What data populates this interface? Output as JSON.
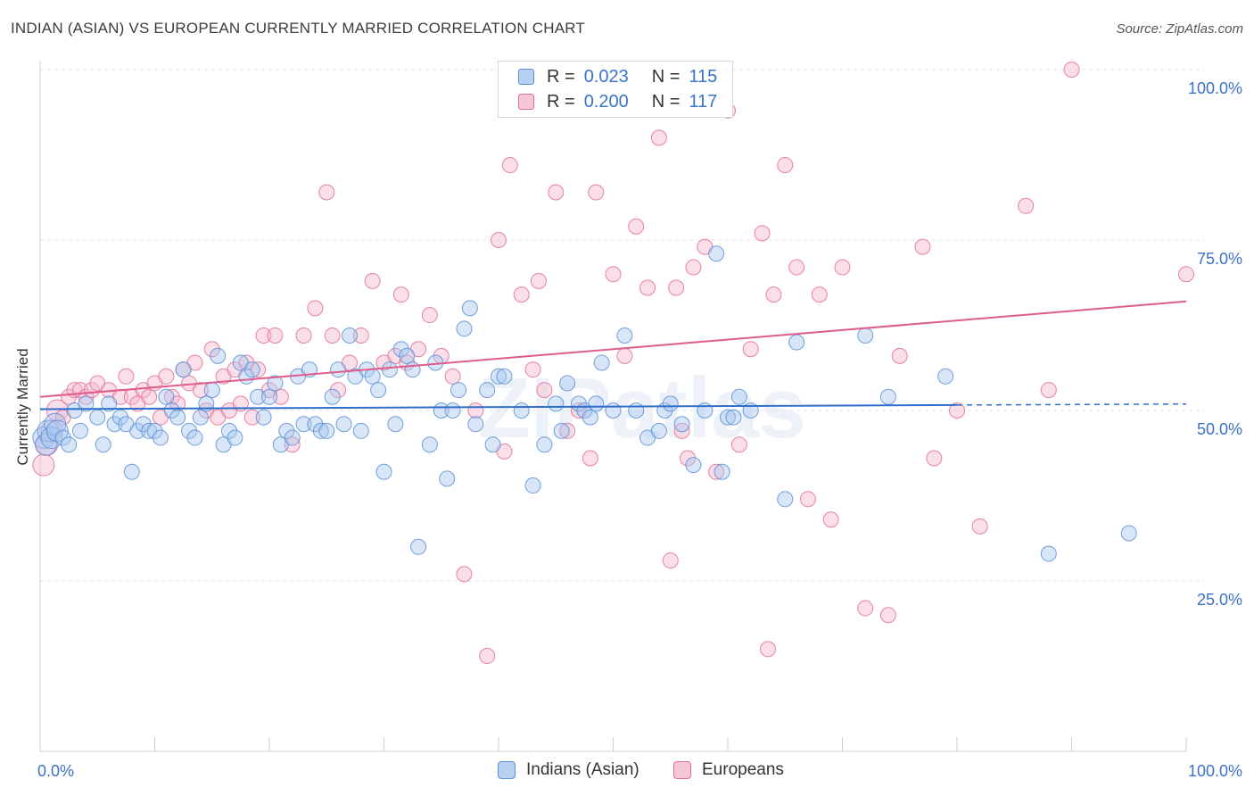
{
  "title": "INDIAN (ASIAN) VS EUROPEAN CURRENTLY MARRIED CORRELATION CHART",
  "source": "Source: ZipAtlas.com",
  "legend": {
    "r_label": "R =",
    "n_label": "N =",
    "blue": {
      "r": "0.023",
      "n": "115"
    },
    "pink": {
      "r": "0.200",
      "n": "117"
    }
  },
  "watermark": "ZIPatlas",
  "colors": {
    "blue": "#5b8fd6",
    "blue_fill": "#a9c8f0",
    "pink": "#e46d96",
    "pink_fill": "#f5b8cc",
    "axis_text": "#3b73c8"
  },
  "chart_data": {
    "type": "scatter",
    "xlabel": "",
    "ylabel": "Currently Married",
    "xlim": [
      0,
      100
    ],
    "ylim": [
      0,
      100
    ],
    "x_tick_labels": [
      "0.0%",
      "100.0%"
    ],
    "y_ticks": [
      25,
      50,
      75,
      100
    ],
    "y_tick_labels": [
      "25.0%",
      "50.0%",
      "75.0%",
      "100.0%"
    ],
    "grid": true,
    "legend_position": "bottom",
    "series": [
      {
        "name": "Indians (Asian)",
        "color": "#5b8fd6",
        "trend": {
          "x0": 0,
          "y0": 50.2,
          "x1": 80,
          "y1": 50.8,
          "dashed_to": 100
        },
        "points": [
          [
            0.3,
            46
          ],
          [
            0.5,
            45
          ],
          [
            0.7,
            47
          ],
          [
            1.0,
            46
          ],
          [
            1.3,
            48
          ],
          [
            1.5,
            47
          ],
          [
            2.0,
            46
          ],
          [
            2.5,
            45
          ],
          [
            3.0,
            50
          ],
          [
            3.5,
            47
          ],
          [
            4.0,
            51
          ],
          [
            5.0,
            49
          ],
          [
            5.5,
            45
          ],
          [
            6.0,
            51
          ],
          [
            6.5,
            48
          ],
          [
            7.0,
            49
          ],
          [
            7.5,
            48
          ],
          [
            8.0,
            41
          ],
          [
            8.5,
            47
          ],
          [
            9.0,
            48
          ],
          [
            9.5,
            47
          ],
          [
            10,
            47
          ],
          [
            10.5,
            46
          ],
          [
            11,
            52
          ],
          [
            11.5,
            50
          ],
          [
            12,
            49
          ],
          [
            12.5,
            56
          ],
          [
            13,
            47
          ],
          [
            13.5,
            46
          ],
          [
            14,
            49
          ],
          [
            14.5,
            51
          ],
          [
            15,
            53
          ],
          [
            15.5,
            58
          ],
          [
            16,
            45
          ],
          [
            16.5,
            47
          ],
          [
            17,
            46
          ],
          [
            17.5,
            57
          ],
          [
            18,
            55
          ],
          [
            18.5,
            56
          ],
          [
            19,
            52
          ],
          [
            19.5,
            49
          ],
          [
            20,
            52
          ],
          [
            20.5,
            54
          ],
          [
            21,
            45
          ],
          [
            21.5,
            47
          ],
          [
            22,
            46
          ],
          [
            22.5,
            55
          ],
          [
            23,
            48
          ],
          [
            23.5,
            56
          ],
          [
            24,
            48
          ],
          [
            24.5,
            47
          ],
          [
            25,
            47
          ],
          [
            25.5,
            52
          ],
          [
            26,
            56
          ],
          [
            26.5,
            48
          ],
          [
            27,
            61
          ],
          [
            27.5,
            55
          ],
          [
            28,
            47
          ],
          [
            28.5,
            56
          ],
          [
            29,
            55
          ],
          [
            29.5,
            53
          ],
          [
            30,
            41
          ],
          [
            30.5,
            56
          ],
          [
            31,
            48
          ],
          [
            31.5,
            59
          ],
          [
            32,
            58
          ],
          [
            32.5,
            56
          ],
          [
            33,
            30
          ],
          [
            34,
            45
          ],
          [
            34.5,
            57
          ],
          [
            35,
            50
          ],
          [
            35.5,
            40
          ],
          [
            36,
            50
          ],
          [
            36.5,
            53
          ],
          [
            37,
            62
          ],
          [
            37.5,
            65
          ],
          [
            38,
            48
          ],
          [
            39,
            53
          ],
          [
            39.5,
            45
          ],
          [
            40,
            55
          ],
          [
            40.5,
            55
          ],
          [
            42,
            50
          ],
          [
            43,
            39
          ],
          [
            44,
            45
          ],
          [
            45,
            51
          ],
          [
            45.5,
            47
          ],
          [
            46,
            54
          ],
          [
            47,
            51
          ],
          [
            47.5,
            50
          ],
          [
            48,
            49
          ],
          [
            48.5,
            51
          ],
          [
            49,
            57
          ],
          [
            50,
            50
          ],
          [
            51,
            61
          ],
          [
            52,
            50
          ],
          [
            53,
            46
          ],
          [
            54,
            47
          ],
          [
            54.5,
            50
          ],
          [
            55,
            51
          ],
          [
            56,
            48
          ],
          [
            57,
            42
          ],
          [
            58,
            50
          ],
          [
            59,
            73
          ],
          [
            59.5,
            41
          ],
          [
            60,
            49
          ],
          [
            60.5,
            49
          ],
          [
            61,
            52
          ],
          [
            62,
            50
          ],
          [
            65,
            37
          ],
          [
            66,
            60
          ],
          [
            72,
            61
          ],
          [
            74,
            52
          ],
          [
            79,
            55
          ],
          [
            88,
            29
          ],
          [
            95,
            32
          ]
        ]
      },
      {
        "name": "Europeans",
        "color": "#e46d96",
        "trend": {
          "x0": 0,
          "y0": 52,
          "x1": 100,
          "y1": 66
        },
        "points": [
          [
            0.3,
            42
          ],
          [
            0.6,
            45
          ],
          [
            1,
            47
          ],
          [
            1.5,
            50
          ],
          [
            2,
            49
          ],
          [
            2.5,
            52
          ],
          [
            3,
            53
          ],
          [
            3.5,
            53
          ],
          [
            4,
            52
          ],
          [
            4.5,
            53
          ],
          [
            5,
            54
          ],
          [
            6,
            53
          ],
          [
            7,
            52
          ],
          [
            7.5,
            55
          ],
          [
            8,
            52
          ],
          [
            8.5,
            51
          ],
          [
            9,
            53
          ],
          [
            9.5,
            52
          ],
          [
            10,
            54
          ],
          [
            10.5,
            49
          ],
          [
            11,
            55
          ],
          [
            11.5,
            52
          ],
          [
            12,
            51
          ],
          [
            12.5,
            56
          ],
          [
            13,
            54
          ],
          [
            13.5,
            57
          ],
          [
            14,
            53
          ],
          [
            14.5,
            50
          ],
          [
            15,
            59
          ],
          [
            15.5,
            49
          ],
          [
            16,
            55
          ],
          [
            16.5,
            50
          ],
          [
            17,
            56
          ],
          [
            17.5,
            51
          ],
          [
            18,
            57
          ],
          [
            18.5,
            49
          ],
          [
            19,
            56
          ],
          [
            19.5,
            61
          ],
          [
            20,
            53
          ],
          [
            20.5,
            61
          ],
          [
            21,
            52
          ],
          [
            22,
            45
          ],
          [
            23,
            61
          ],
          [
            24,
            65
          ],
          [
            25,
            82
          ],
          [
            25.5,
            61
          ],
          [
            26,
            53
          ],
          [
            27,
            57
          ],
          [
            28,
            61
          ],
          [
            29,
            69
          ],
          [
            30,
            57
          ],
          [
            31,
            58
          ],
          [
            31.5,
            67
          ],
          [
            32,
            57
          ],
          [
            33,
            59
          ],
          [
            34,
            64
          ],
          [
            35,
            58
          ],
          [
            36,
            55
          ],
          [
            37,
            26
          ],
          [
            38,
            50
          ],
          [
            39,
            14
          ],
          [
            40,
            75
          ],
          [
            40.5,
            44
          ],
          [
            41,
            86
          ],
          [
            42,
            67
          ],
          [
            43,
            56
          ],
          [
            43.5,
            69
          ],
          [
            44,
            53
          ],
          [
            45,
            82
          ],
          [
            46,
            47
          ],
          [
            47,
            50
          ],
          [
            48,
            43
          ],
          [
            48.5,
            82
          ],
          [
            50,
            70
          ],
          [
            51,
            58
          ],
          [
            52,
            77
          ],
          [
            53,
            68
          ],
          [
            54,
            90
          ],
          [
            55,
            28
          ],
          [
            55.5,
            68
          ],
          [
            56,
            47
          ],
          [
            56.5,
            43
          ],
          [
            57,
            71
          ],
          [
            58,
            74
          ],
          [
            59,
            41
          ],
          [
            60,
            94
          ],
          [
            61,
            45
          ],
          [
            62,
            59
          ],
          [
            63,
            76
          ],
          [
            63.5,
            15
          ],
          [
            64,
            67
          ],
          [
            65,
            86
          ],
          [
            66,
            71
          ],
          [
            67,
            37
          ],
          [
            68,
            67
          ],
          [
            69,
            34
          ],
          [
            70,
            71
          ],
          [
            72,
            21
          ],
          [
            74,
            20
          ],
          [
            75,
            58
          ],
          [
            77,
            74
          ],
          [
            78,
            43
          ],
          [
            80,
            50
          ],
          [
            82,
            33
          ],
          [
            86,
            80
          ],
          [
            88,
            53
          ],
          [
            90,
            100
          ],
          [
            100,
            70
          ]
        ]
      }
    ]
  }
}
